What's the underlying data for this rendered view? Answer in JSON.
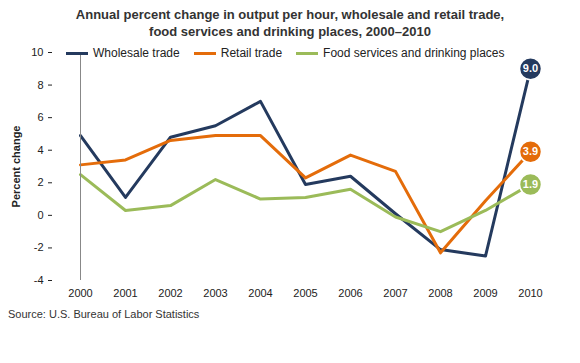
{
  "chart_data": {
    "type": "line",
    "title": "Annual percent change in output per hour, wholesale and retail trade,\nfood services and drinking places, 2000–2010",
    "y_label": "Percent change",
    "source": "Source: U.S. Bureau of Labor Statistics",
    "x": [
      2000,
      2001,
      2002,
      2003,
      2004,
      2005,
      2006,
      2007,
      2008,
      2009,
      2010
    ],
    "series": [
      {
        "name": "Wholesale trade",
        "color": "#243a5e",
        "values": [
          4.9,
          1.1,
          4.8,
          5.5,
          7.0,
          1.9,
          2.4,
          0.1,
          -2.1,
          -2.5,
          9.0
        ],
        "value_labels": [
          null,
          null,
          null,
          null,
          null,
          null,
          null,
          null,
          null,
          null,
          "9.0"
        ]
      },
      {
        "name": "Retail trade",
        "color": "#e46c0a",
        "values": [
          3.1,
          3.4,
          4.6,
          4.9,
          4.9,
          2.3,
          3.7,
          2.7,
          -2.3,
          0.9,
          3.9
        ],
        "value_labels": [
          null,
          null,
          null,
          null,
          null,
          null,
          null,
          null,
          null,
          null,
          "3.9"
        ]
      },
      {
        "name": "Food services and drinking places",
        "color": "#9bbb59",
        "values": [
          2.5,
          0.3,
          0.6,
          2.2,
          1.0,
          1.1,
          1.6,
          -0.1,
          -1.0,
          0.3,
          1.9
        ],
        "value_labels": [
          null,
          null,
          null,
          null,
          null,
          null,
          null,
          null,
          null,
          null,
          "1.9"
        ]
      }
    ],
    "ylim": [
      -4,
      10
    ],
    "yticks": [
      -4,
      -2,
      0,
      2,
      4,
      6,
      8,
      10
    ],
    "grid": false,
    "legend": "top-left",
    "data_labels": true
  }
}
